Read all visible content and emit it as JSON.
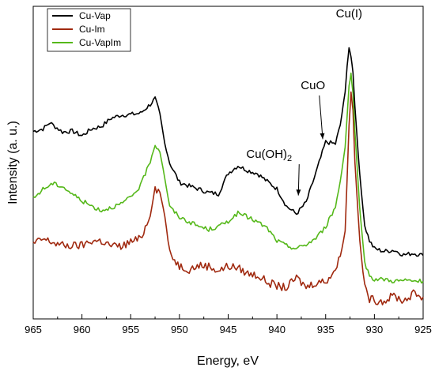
{
  "chart_data": {
    "type": "line",
    "xlabel": "Energy, eV",
    "ylabel": "Intensity (a. u.)",
    "xlim": [
      965,
      925
    ],
    "x_reversed": true,
    "xticks": [
      965,
      960,
      955,
      950,
      945,
      940,
      935,
      930,
      925
    ],
    "ylim": [
      0,
      100
    ],
    "y_ticks_shown": false,
    "grid": false,
    "legend_position": "top-left",
    "series": [
      {
        "name": "Cu-Vap",
        "color": "#000000",
        "points": [
          [
            965,
            60.0
          ],
          [
            964,
            60.8
          ],
          [
            963.3,
            62.8
          ],
          [
            962,
            59.8
          ],
          [
            961,
            60.1
          ],
          [
            960,
            58.6
          ],
          [
            959,
            60.8
          ],
          [
            958,
            61.6
          ],
          [
            957,
            64.2
          ],
          [
            956,
            65.2
          ],
          [
            955,
            65.4
          ],
          [
            954,
            65.8
          ],
          [
            953,
            68.6
          ],
          [
            952.5,
            70.5
          ],
          [
            952,
            65.5
          ],
          [
            951.5,
            56
          ],
          [
            951,
            49.9
          ],
          [
            950,
            43.7
          ],
          [
            949,
            42.5
          ],
          [
            948,
            41.5
          ],
          [
            947,
            40.4
          ],
          [
            946,
            40.0
          ],
          [
            945,
            46.6
          ],
          [
            944,
            49.0
          ],
          [
            943,
            47.5
          ],
          [
            942,
            46.5
          ],
          [
            941,
            44.0
          ],
          [
            940,
            41.6
          ],
          [
            939,
            36.0
          ],
          [
            938,
            33.6
          ],
          [
            937,
            37.3
          ],
          [
            936,
            46.7
          ],
          [
            935,
            56.6
          ],
          [
            934,
            56.0
          ],
          [
            933.5,
            62
          ],
          [
            933,
            72.5
          ],
          [
            932.8,
            81
          ],
          [
            932.6,
            86.5
          ],
          [
            932.4,
            84
          ],
          [
            932.2,
            79
          ],
          [
            932,
            68
          ],
          [
            931.5,
            46
          ],
          [
            931,
            30
          ],
          [
            930.5,
            25
          ],
          [
            930,
            22.5
          ],
          [
            929,
            21.6
          ],
          [
            928,
            22.0
          ],
          [
            927,
            20.5
          ],
          [
            926,
            21.0
          ],
          [
            925,
            20.3
          ]
        ]
      },
      {
        "name": "Cu-Im",
        "color": "#a0290f",
        "points": [
          [
            965,
            24.0
          ],
          [
            964,
            25.5
          ],
          [
            963,
            24.5
          ],
          [
            962,
            23.5
          ],
          [
            961,
            23.4
          ],
          [
            960,
            23.5
          ],
          [
            959,
            25.0
          ],
          [
            958,
            24.9
          ],
          [
            957,
            23.4
          ],
          [
            956,
            23.1
          ],
          [
            955,
            24.7
          ],
          [
            954,
            25.6
          ],
          [
            953,
            33.0
          ],
          [
            952.5,
            42.0
          ],
          [
            952,
            40.5
          ],
          [
            951.5,
            33
          ],
          [
            951,
            20.9
          ],
          [
            950,
            17.0
          ],
          [
            949,
            15.9
          ],
          [
            948,
            17.1
          ],
          [
            947,
            16.9
          ],
          [
            946,
            15.4
          ],
          [
            945,
            16.9
          ],
          [
            944,
            16.3
          ],
          [
            943,
            14.5
          ],
          [
            942,
            14.0
          ],
          [
            941,
            11.8
          ],
          [
            940,
            10.5
          ],
          [
            939,
            10.0
          ],
          [
            938,
            13.2
          ],
          [
            937,
            10.2
          ],
          [
            936,
            11.7
          ],
          [
            935,
            12.0
          ],
          [
            934,
            15.8
          ],
          [
            933.5,
            20
          ],
          [
            933,
            28
          ],
          [
            932.8,
            45
          ],
          [
            932.6,
            62
          ],
          [
            932.4,
            72.5
          ],
          [
            932.2,
            67
          ],
          [
            932,
            50
          ],
          [
            931.5,
            25
          ],
          [
            931,
            10
          ],
          [
            930.5,
            6.5
          ],
          [
            930,
            6.0
          ],
          [
            929,
            5.7
          ],
          [
            928,
            7.5
          ],
          [
            927,
            5.7
          ],
          [
            926,
            8.1
          ],
          [
            925,
            7.0
          ]
        ]
      },
      {
        "name": "Cu-VapIm",
        "color": "#55b81a",
        "points": [
          [
            965,
            38.5
          ],
          [
            964,
            41.5
          ],
          [
            963,
            43.3
          ],
          [
            962,
            42.4
          ],
          [
            961,
            40.0
          ],
          [
            960,
            37.8
          ],
          [
            959,
            36.1
          ],
          [
            958,
            34.7
          ],
          [
            957,
            35.7
          ],
          [
            956,
            36.7
          ],
          [
            955,
            38.9
          ],
          [
            954,
            42.5
          ],
          [
            953,
            50.5
          ],
          [
            952.5,
            55.8
          ],
          [
            952,
            53.5
          ],
          [
            951.5,
            45
          ],
          [
            951,
            35.8
          ],
          [
            950,
            32.6
          ],
          [
            949,
            31.0
          ],
          [
            948,
            29.6
          ],
          [
            947,
            28.6
          ],
          [
            946,
            29.5
          ],
          [
            945,
            31.3
          ],
          [
            944,
            33.8
          ],
          [
            943,
            32.6
          ],
          [
            942,
            31.0
          ],
          [
            941,
            29.0
          ],
          [
            940,
            25.0
          ],
          [
            939,
            23.4
          ],
          [
            938,
            22.5
          ],
          [
            937,
            23.8
          ],
          [
            936,
            25.8
          ],
          [
            935,
            29.5
          ],
          [
            934,
            35.8
          ],
          [
            933.5,
            44
          ],
          [
            933,
            55
          ],
          [
            932.8,
            65
          ],
          [
            932.6,
            74.5
          ],
          [
            932.4,
            78.5
          ],
          [
            932.2,
            72
          ],
          [
            932,
            60
          ],
          [
            931.5,
            35
          ],
          [
            931,
            18
          ],
          [
            930.5,
            14
          ],
          [
            930,
            12.7
          ],
          [
            929,
            12.7
          ],
          [
            928,
            12.1
          ],
          [
            927,
            12.3
          ],
          [
            926,
            12.1
          ],
          [
            925,
            12.0
          ]
        ]
      }
    ],
    "annotations": [
      {
        "id": "cu1",
        "text": "Cu(I)",
        "at": [
          932.6,
          96.5
        ],
        "arrow": false
      },
      {
        "id": "cuo",
        "text": "CuO",
        "at": [
          936.3,
          73.5
        ],
        "arrow_to": [
          935.3,
          57.5
        ]
      },
      {
        "id": "cuoh2",
        "text": "Cu(OH)",
        "subscript": "2",
        "at": [
          940.8,
          51.5
        ],
        "arrow_to": [
          937.8,
          39.5
        ]
      }
    ]
  }
}
